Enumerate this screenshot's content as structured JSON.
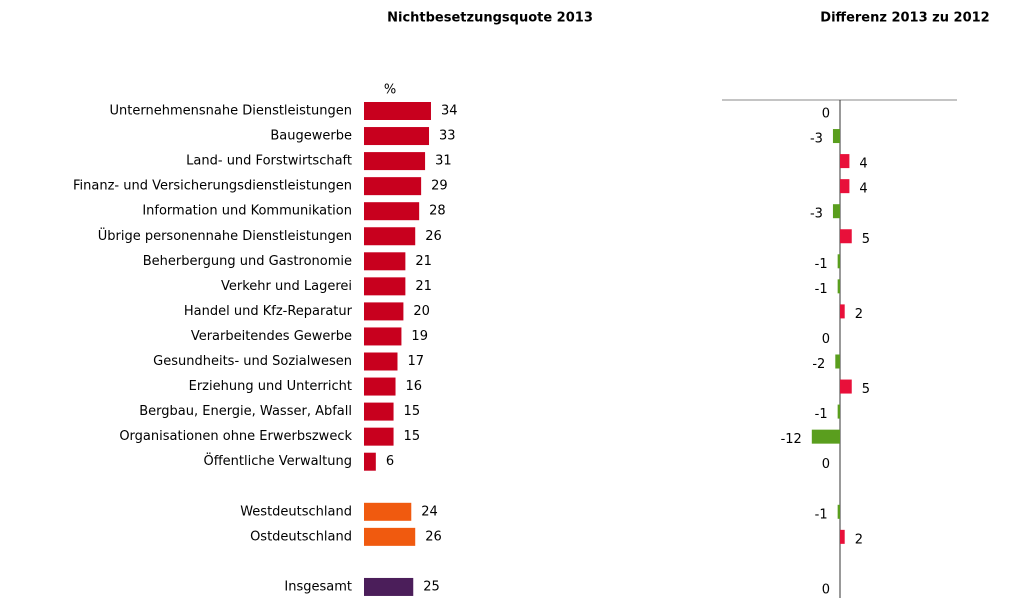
{
  "chart_data": [
    {
      "type": "hbar",
      "title": "Nichtbesetzungsquote 2013",
      "unit_label": "%",
      "categories": [
        "Unternehmensnahe Dienstleistungen",
        "Baugewerbe",
        "Land- und Forstwirtschaft",
        "Finanz- und Versicherungsdienstleistungen",
        "Information und Kommunikation",
        "Übrige personennahe Dienstleistungen",
        "Beherbergung und Gastronomie",
        "Verkehr und Lagerei",
        "Handel und Kfz-Reparatur",
        "Verarbeitendes Gewerbe",
        "Gesundheits- und Sozialwesen",
        "Erziehung und Unterricht",
        "Bergbau, Energie, Wasser, Abfall",
        "Organisationen ohne Erwerbszweck",
        "Öffentliche Verwaltung",
        null,
        "Westdeutschland",
        "Ostdeutschland",
        null,
        "Insgesamt"
      ],
      "values": [
        34,
        33,
        31,
        29,
        28,
        26,
        21,
        21,
        20,
        19,
        17,
        16,
        15,
        15,
        6,
        null,
        24,
        26,
        null,
        25
      ],
      "colors": [
        "#c8001e",
        "#c8001e",
        "#c8001e",
        "#c8001e",
        "#c8001e",
        "#c8001e",
        "#c8001e",
        "#c8001e",
        "#c8001e",
        "#c8001e",
        "#c8001e",
        "#c8001e",
        "#c8001e",
        "#c8001e",
        "#c8001e",
        null,
        "#f05a0f",
        "#f05a0f",
        null,
        "#4b1e5a"
      ]
    },
    {
      "type": "diverging",
      "title": "Differenz 2013 zu 2012",
      "values": [
        0,
        -3,
        4,
        4,
        -3,
        5,
        -1,
        -1,
        2,
        0,
        -2,
        5,
        -1,
        -12,
        0,
        null,
        -1,
        2,
        null,
        0
      ],
      "positive_color": "#e8103a",
      "negative_color": "#5a9e1e"
    }
  ]
}
